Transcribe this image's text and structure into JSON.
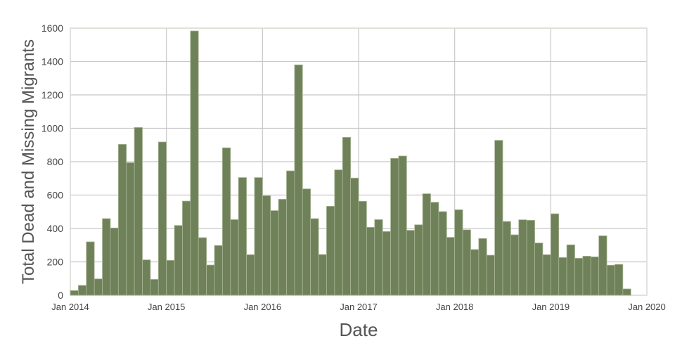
{
  "chart_data": {
    "type": "bar",
    "xlabel": "Date",
    "ylabel": "Total Dead and Missing Migrants",
    "ylim": [
      0,
      1600
    ],
    "yticks": [
      0,
      200,
      400,
      600,
      800,
      1000,
      1200,
      1400,
      1600
    ],
    "xlim": [
      "2014-01",
      "2020-01"
    ],
    "xticks": [
      {
        "label": "Jan 2014",
        "date": "2014-01"
      },
      {
        "label": "Jan 2015",
        "date": "2015-01"
      },
      {
        "label": "Jan 2016",
        "date": "2016-01"
      },
      {
        "label": "Jan 2017",
        "date": "2017-01"
      },
      {
        "label": "Jan 2018",
        "date": "2018-01"
      },
      {
        "label": "Jan 2019",
        "date": "2019-01"
      },
      {
        "label": "Jan 2020",
        "date": "2020-01"
      }
    ],
    "grid": true,
    "bar_color": "#6f8158",
    "start_month": "2014-01",
    "values": [
      28,
      59,
      320,
      98,
      459,
      403,
      904,
      794,
      1005,
      212,
      95,
      918,
      209,
      418,
      564,
      1583,
      345,
      181,
      298,
      883,
      453,
      705,
      243,
      705,
      596,
      507,
      575,
      745,
      1380,
      637,
      459,
      244,
      533,
      751,
      946,
      702,
      563,
      407,
      453,
      382,
      820,
      834,
      389,
      422,
      608,
      557,
      501,
      347,
      512,
      392,
      274,
      340,
      240,
      928,
      442,
      362,
      452,
      449,
      313,
      243,
      488,
      226,
      302,
      222,
      234,
      230,
      356,
      180,
      185,
      38
    ]
  }
}
